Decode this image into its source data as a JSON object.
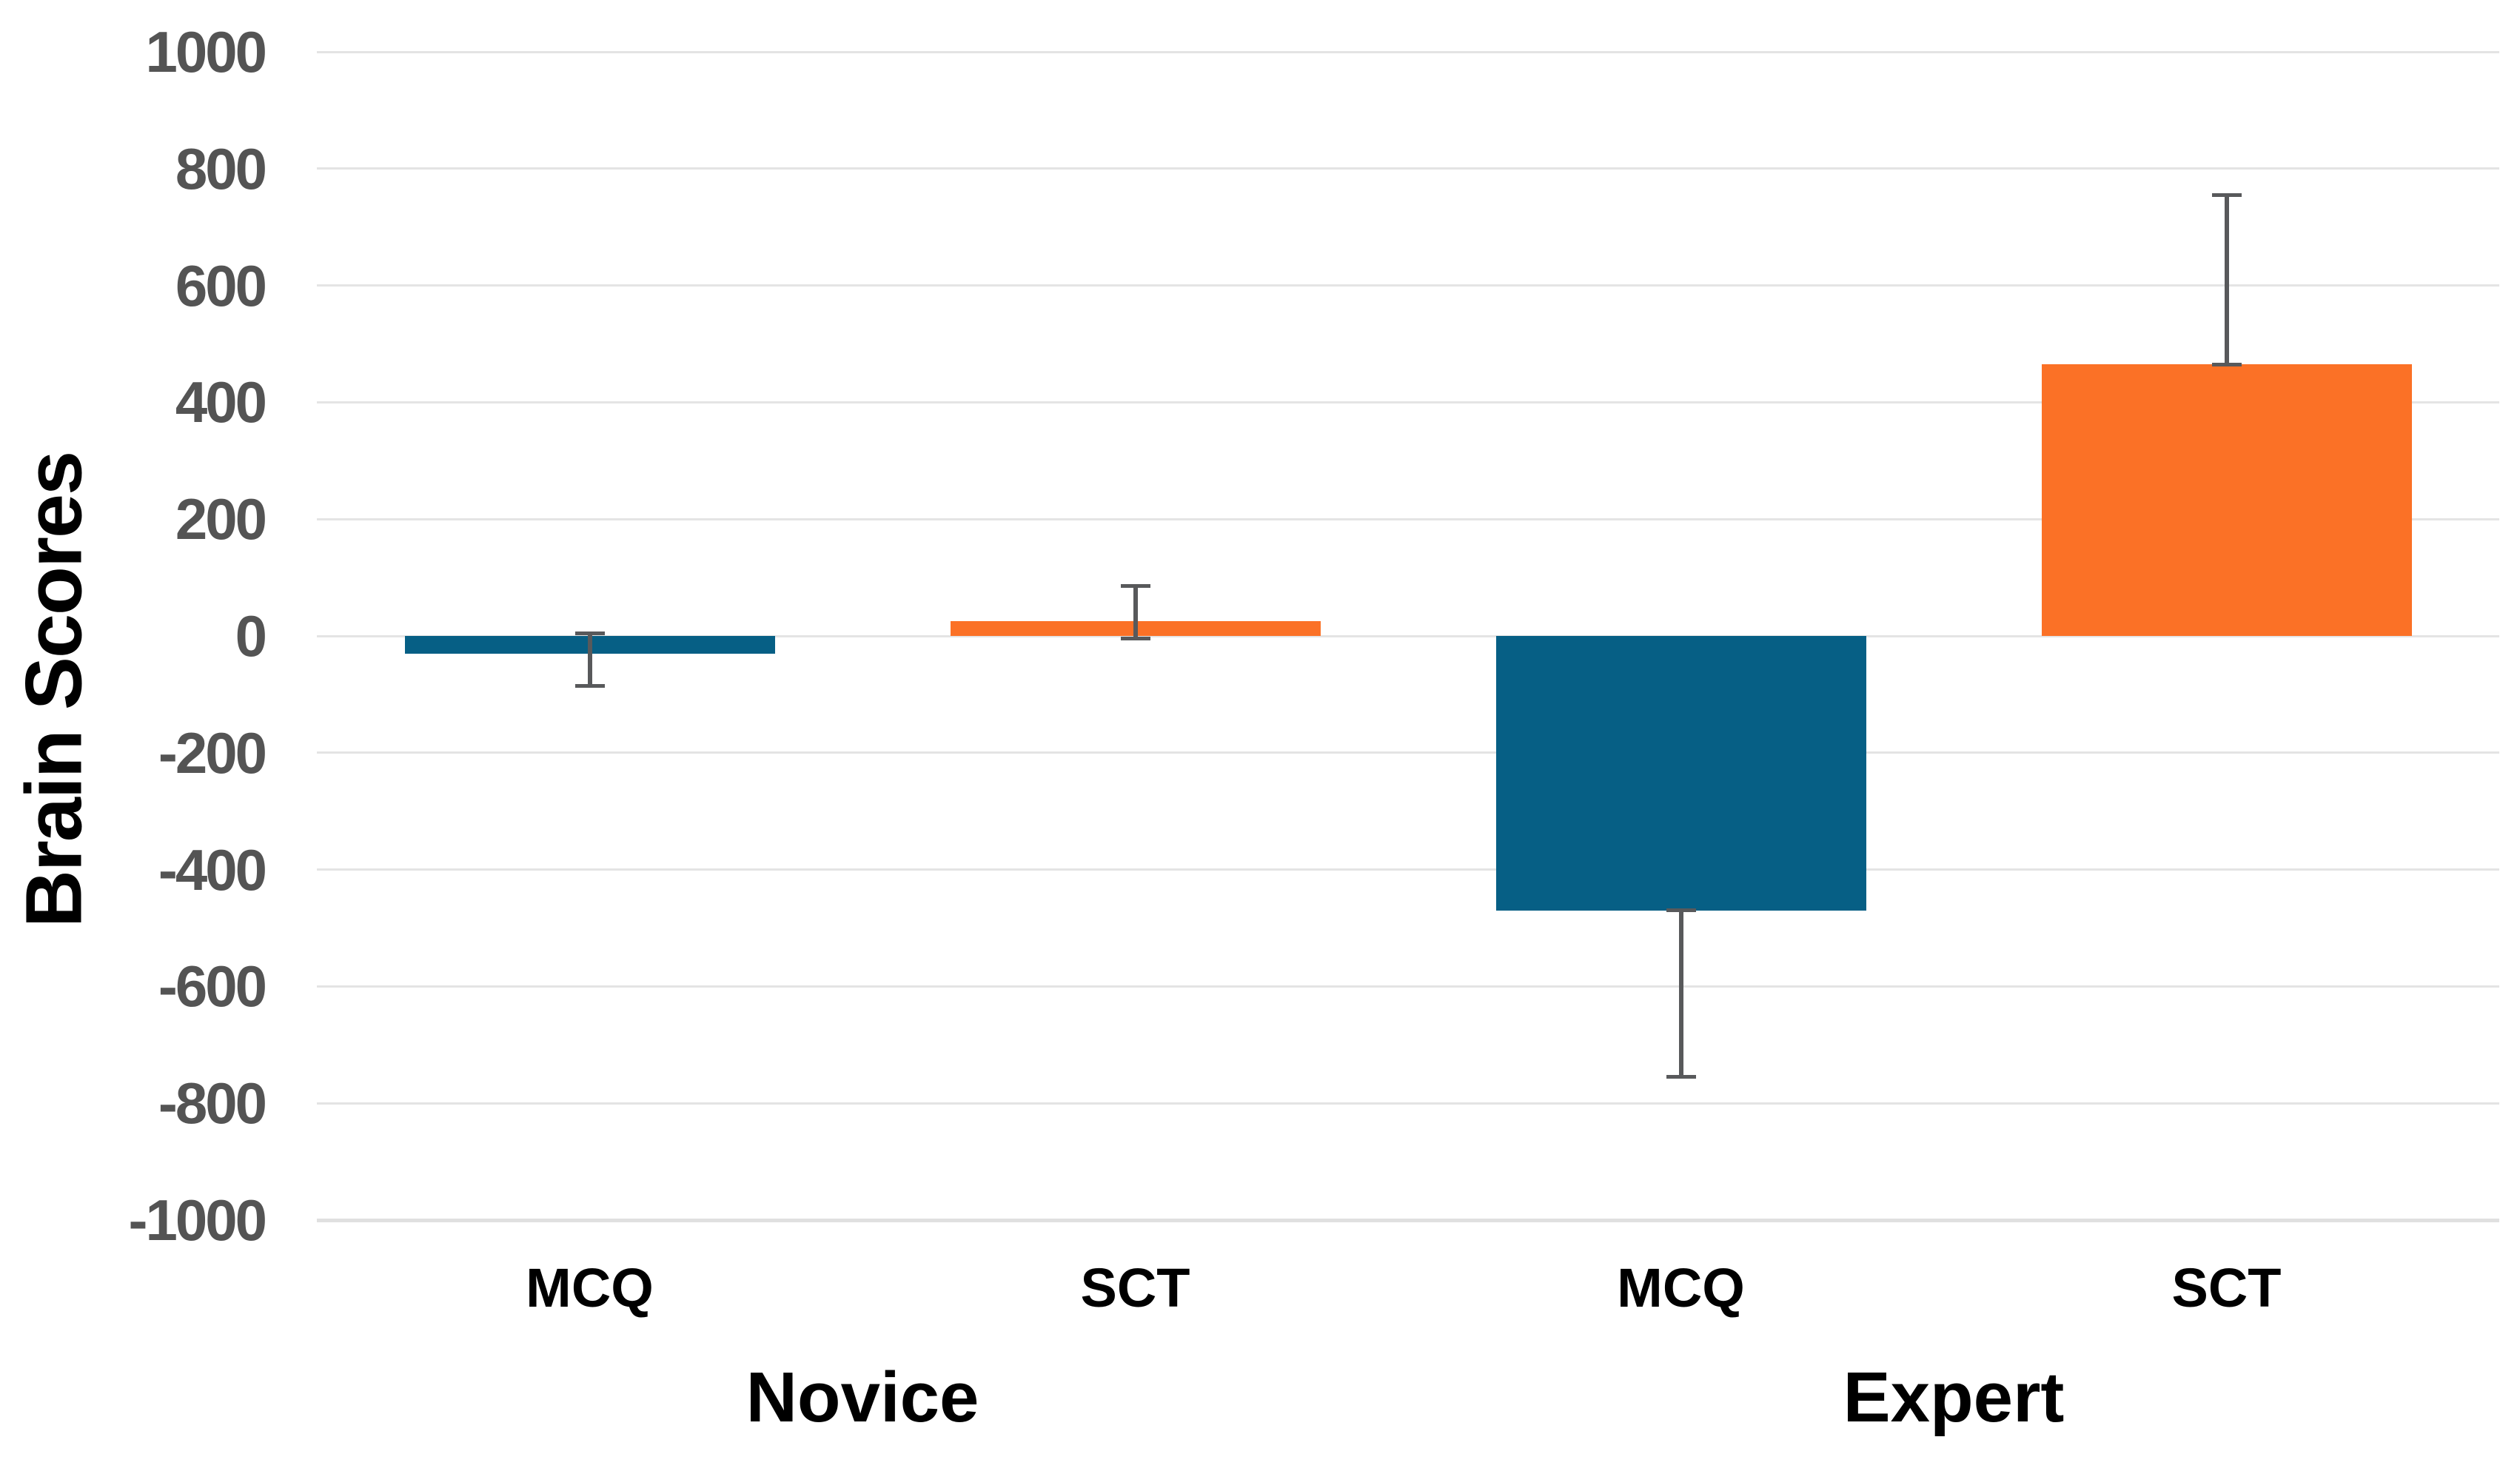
{
  "chart_data": {
    "type": "bar",
    "title": "",
    "xlabel": "",
    "ylabel": "Brain Scores",
    "ylim": [
      -1000,
      1000
    ],
    "ytick_step": 200,
    "ytick_values": [
      1000,
      800,
      600,
      400,
      200,
      0,
      -200,
      -400,
      -600,
      -800,
      -1000
    ],
    "ytick_labels": [
      "1000",
      "800",
      "600",
      "400",
      "200",
      "0",
      "-200",
      "-400",
      "-600",
      "-800",
      "-1000"
    ],
    "grid": "horizontal",
    "legend": "none",
    "group_labels": [
      "Novice",
      "Expert"
    ],
    "categories": [
      "MCQ",
      "SCT",
      "MCQ",
      "SCT"
    ],
    "bars": [
      {
        "group": "Novice",
        "category": "MCQ",
        "value": -30,
        "whisker_high": 5,
        "whisker_low": -85,
        "color_key": "blue"
      },
      {
        "group": "Novice",
        "category": "SCT",
        "value": 25,
        "whisker_high": 85,
        "whisker_low": -5,
        "color_key": "orange"
      },
      {
        "group": "Expert",
        "category": "MCQ",
        "value": -470,
        "whisker_high": -470,
        "whisker_low": -755,
        "color_key": "blue"
      },
      {
        "group": "Expert",
        "category": "SCT",
        "value": 465,
        "whisker_high": 755,
        "whisker_low": 465,
        "color_key": "orange"
      }
    ],
    "colors": {
      "blue": "#065f85",
      "orange": "#fb7126",
      "error_bar": "#58595b",
      "gridline": "#e4e4e4",
      "baseline_gridline": "#e0e0e0",
      "tick_label": "#545454",
      "label_text": "#000000",
      "background": "#ffffff"
    }
  }
}
